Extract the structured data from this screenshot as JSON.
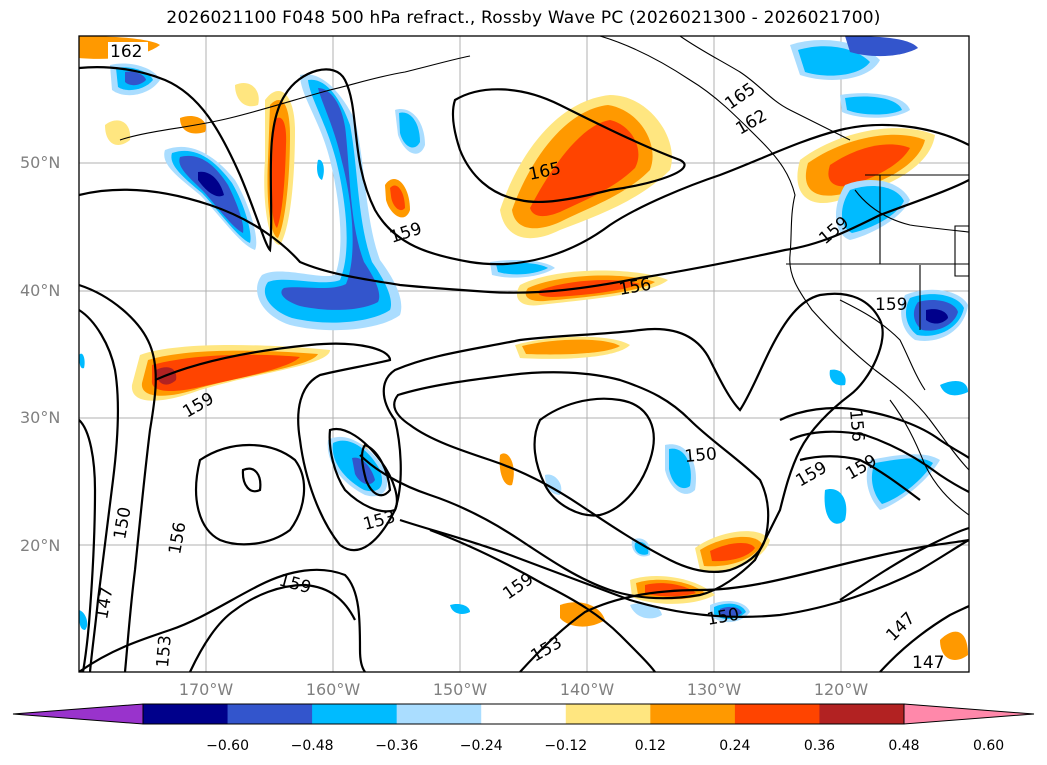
{
  "title": "2026021100 F048 500 hPa refract., Rossby Wave PC (2026021300 - 2026021700)",
  "lat_labels": [
    "50°N",
    "40°N",
    "30°N",
    "20°N"
  ],
  "lon_labels": [
    "170°W",
    "160°W",
    "150°W",
    "140°W",
    "130°W",
    "120°W"
  ],
  "contour_labels": [
    "162",
    "165",
    "162",
    "165",
    "159",
    "159",
    "156",
    "159",
    "159",
    "150",
    "156",
    "159",
    "159",
    "153",
    "150",
    "156",
    "147",
    "159",
    "153",
    "159",
    "150",
    "153",
    "147",
    "147"
  ],
  "colorbar": {
    "tick_labels": [
      "−0.60",
      "−0.48",
      "−0.36",
      "−0.24",
      "−0.12",
      "0.12",
      "0.24",
      "0.36",
      "0.48",
      "0.60"
    ],
    "colors": [
      "#9933cc",
      "#00008b",
      "#3355cc",
      "#00bbff",
      "#aaddff",
      "#ffffff",
      "#ffe680",
      "#ff9900",
      "#ff4400",
      "#b22222",
      "#ff88aa"
    ]
  }
}
